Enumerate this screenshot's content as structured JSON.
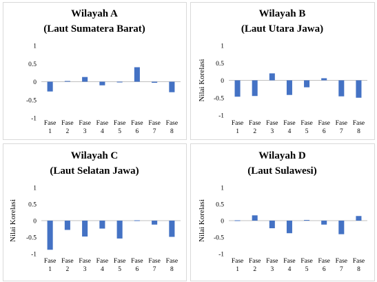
{
  "chart_data": [
    {
      "type": "bar",
      "title": "Wilayah  A",
      "subtitle": "(Laut Sumatera Barat)",
      "ylabel": "",
      "xlabel": "",
      "ylim": [
        -1,
        1
      ],
      "yticks": [
        "1",
        "0.5",
        "0",
        "-0.5",
        "-1"
      ],
      "categories": [
        [
          "Fase",
          "1"
        ],
        [
          "Fase",
          "2"
        ],
        [
          "Fase",
          "3"
        ],
        [
          "Fase",
          "4"
        ],
        [
          "Fase",
          "5"
        ],
        [
          "Fase",
          "6"
        ],
        [
          "Fase",
          "7"
        ],
        [
          "Fase",
          "8"
        ]
      ],
      "values": [
        -0.27,
        0.02,
        0.13,
        -0.1,
        -0.02,
        0.4,
        -0.03,
        -0.29
      ],
      "color": "#4472c4",
      "grid": false
    },
    {
      "type": "bar",
      "title": "Wilayah  B",
      "subtitle": "(Laut Utara Jawa)",
      "ylabel": "Nilai Korelasi",
      "xlabel": "",
      "ylim": [
        -1,
        1
      ],
      "yticks": [
        "1",
        "0.5",
        "0",
        "-0.5",
        "-1"
      ],
      "categories": [
        [
          "Fase",
          "1"
        ],
        [
          "Fase",
          "2"
        ],
        [
          "Fase",
          "3"
        ],
        [
          "Fase",
          "4"
        ],
        [
          "Fase",
          "5"
        ],
        [
          "Fase",
          "6"
        ],
        [
          "Fase",
          "7"
        ],
        [
          "Fase",
          "8"
        ]
      ],
      "values": [
        -0.47,
        -0.45,
        0.2,
        -0.42,
        -0.2,
        0.06,
        -0.46,
        -0.5
      ],
      "color": "#4472c4",
      "grid": false
    },
    {
      "type": "bar",
      "title": "Wilayah  C",
      "subtitle": "(Laut Selatan Jawa)",
      "ylabel": "Nilai Korelasi",
      "xlabel": "",
      "ylim": [
        -1,
        1
      ],
      "yticks": [
        "1",
        "0.5",
        "0",
        "-0.5",
        "-1"
      ],
      "categories": [
        [
          "Fase",
          "1"
        ],
        [
          "Fase",
          "2"
        ],
        [
          "Fase",
          "3"
        ],
        [
          "Fase",
          "4"
        ],
        [
          "Fase",
          "5"
        ],
        [
          "Fase",
          "6"
        ],
        [
          "Fase",
          "7"
        ],
        [
          "Fase",
          "8"
        ]
      ],
      "values": [
        -0.88,
        -0.28,
        -0.48,
        -0.24,
        -0.54,
        0.01,
        -0.12,
        -0.49
      ],
      "color": "#4472c4",
      "grid": false
    },
    {
      "type": "bar",
      "title": "Wilayah  D",
      "subtitle": "(Laut Sulawesi)",
      "ylabel": "Nilai Korelasi",
      "xlabel": "",
      "ylim": [
        -1,
        1
      ],
      "yticks": [
        "1",
        "0.5",
        "0",
        "-0.5",
        "-1"
      ],
      "categories": [
        [
          "Fase",
          "1"
        ],
        [
          "Fase",
          "2"
        ],
        [
          "Fase",
          "3"
        ],
        [
          "Fase",
          "4"
        ],
        [
          "Fase",
          "5"
        ],
        [
          "Fase",
          "6"
        ],
        [
          "Fase",
          "7"
        ],
        [
          "Fase",
          "8"
        ]
      ],
      "values": [
        0.01,
        0.16,
        -0.23,
        -0.38,
        0.02,
        -0.12,
        -0.41,
        0.14
      ],
      "color": "#4472c4",
      "grid": false
    }
  ]
}
